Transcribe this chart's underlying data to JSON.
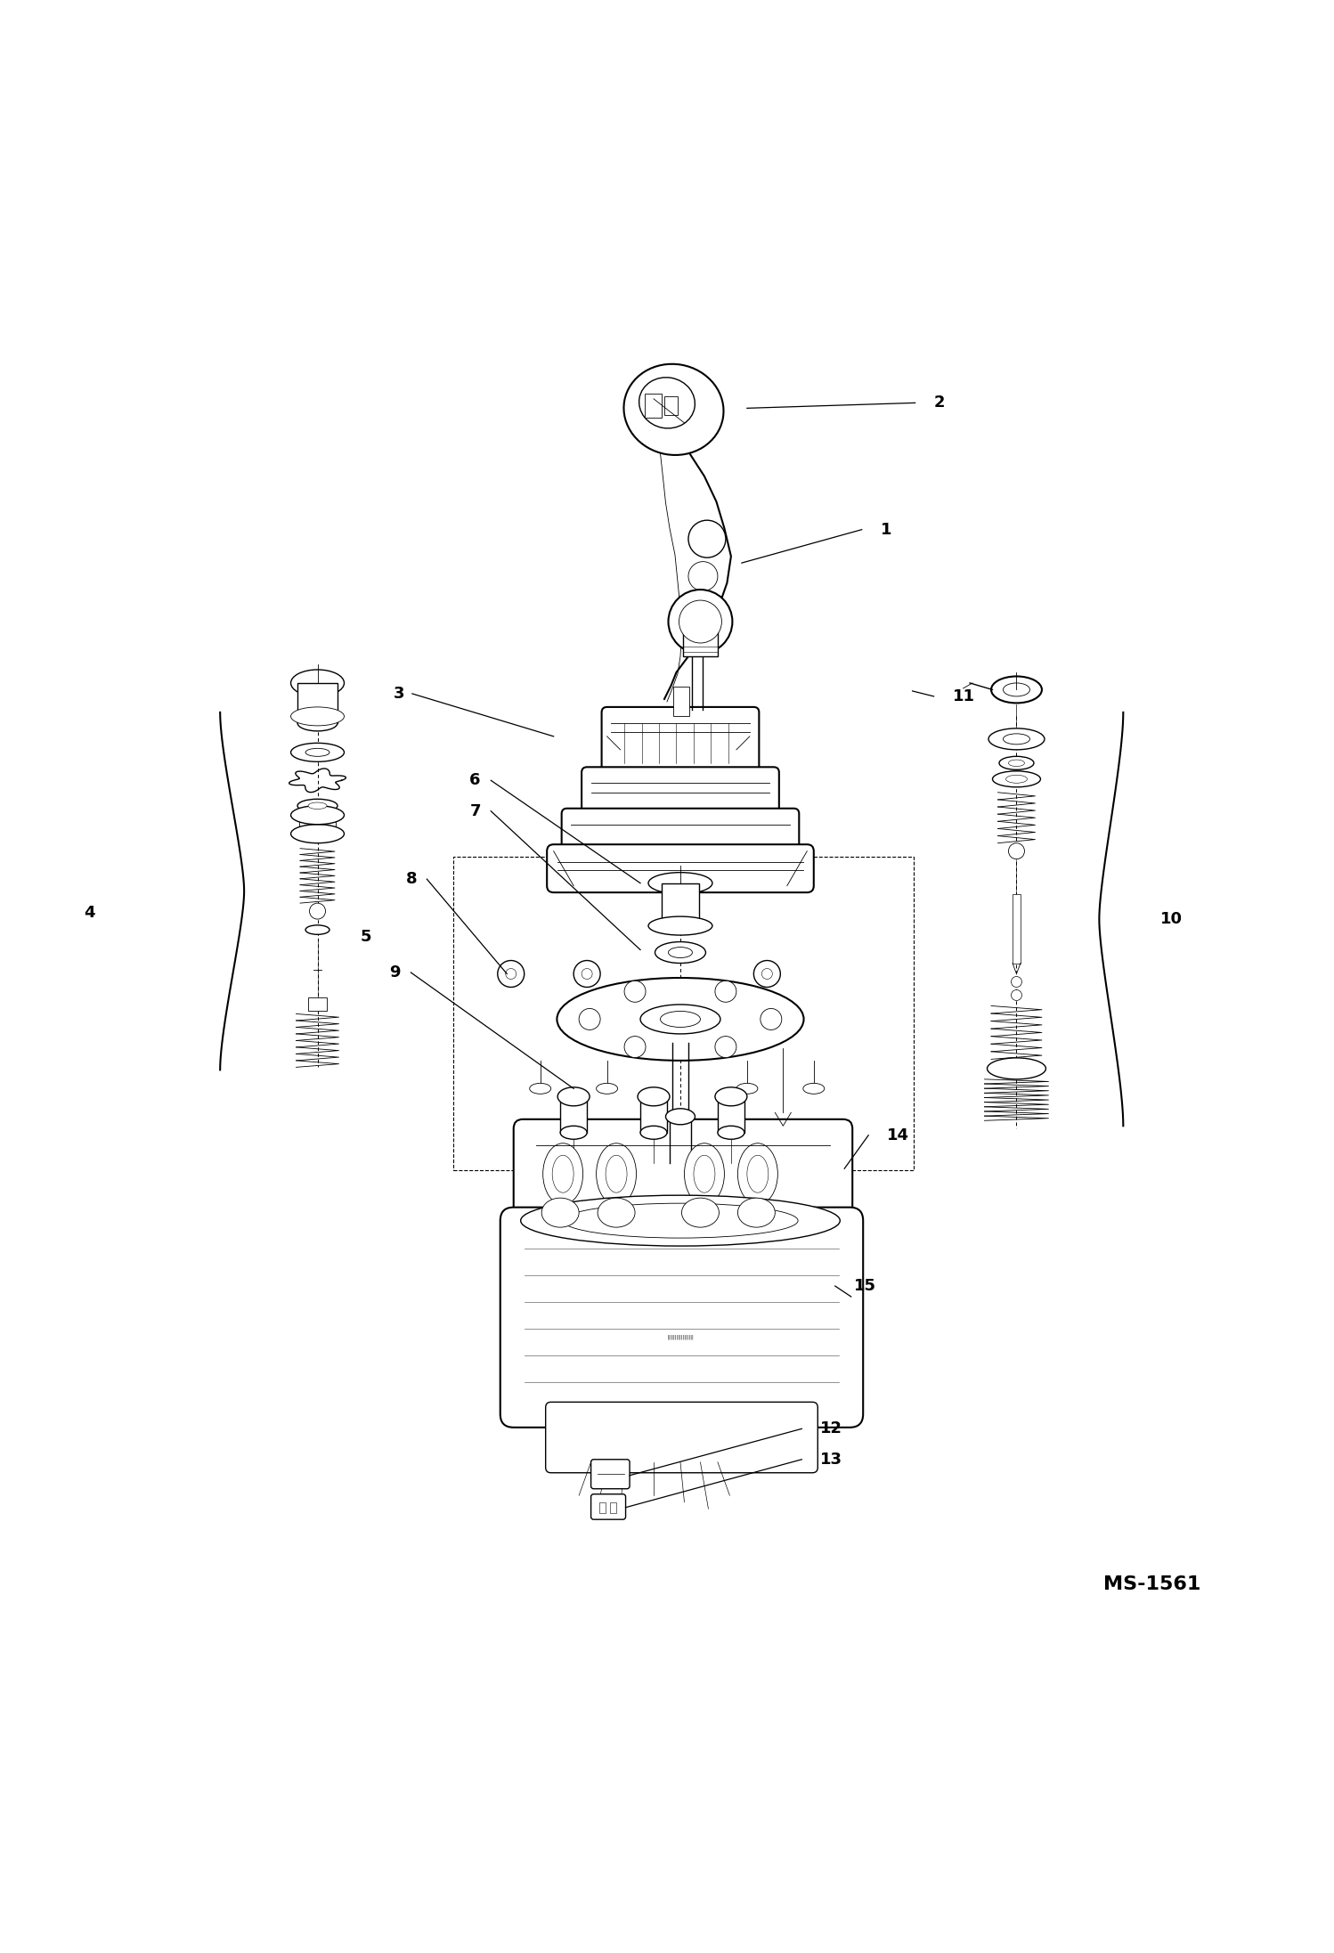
{
  "page_width": 14.98,
  "page_height": 21.93,
  "dpi": 100,
  "background_color": "#ffffff",
  "border_color": "#000000",
  "ms_code": "MS-1561",
  "ms_fontsize": 16,
  "label_fontsize": 13,
  "line_color": "#000000",
  "label_color": "#000000",
  "lw": 1.0,
  "lw_thick": 1.5,
  "lw_thin": 0.6
}
